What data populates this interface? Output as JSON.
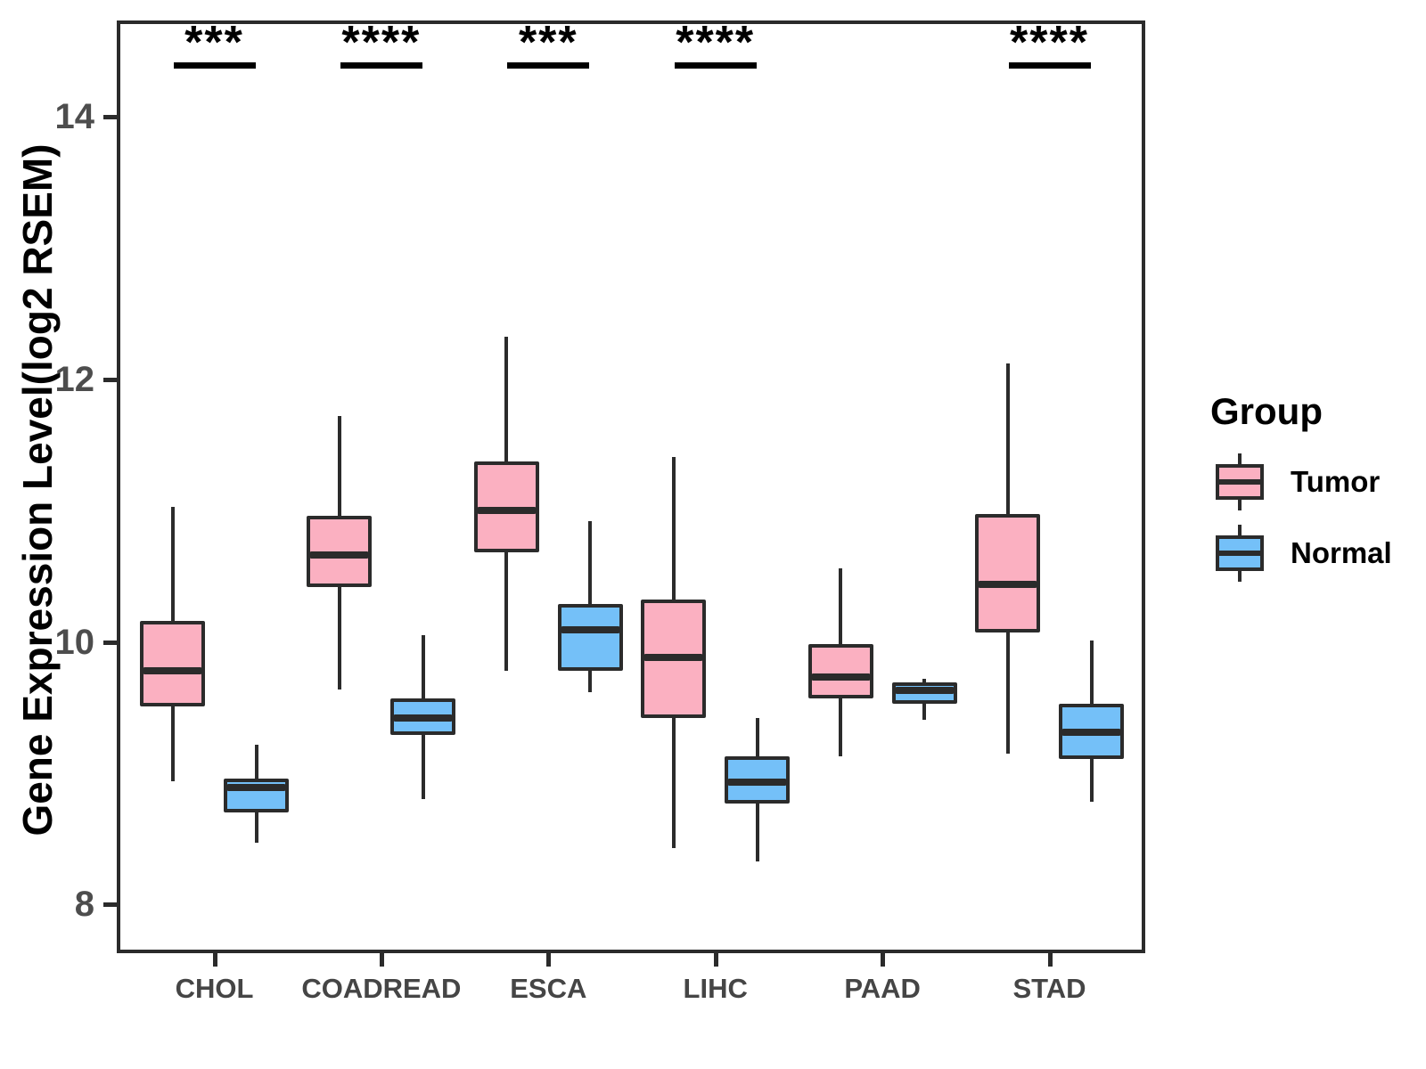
{
  "chart_data": {
    "type": "boxplot",
    "title": "",
    "xlabel": "",
    "ylabel": "Gene Expression Level(log2 RSEM)",
    "ylim": [
      7.63,
      14.73
    ],
    "y_ticks": [
      8,
      10,
      12,
      14
    ],
    "grid": "off",
    "categories": [
      "CHOL",
      "COADREAD",
      "ESCA",
      "LIHC",
      "PAAD",
      "STAD"
    ],
    "legend": {
      "title": "Group",
      "position": "right"
    },
    "groups": [
      {
        "name": "Tumor",
        "fill": "#FBB0C1"
      },
      {
        "name": "Normal",
        "fill": "#74C0F8"
      }
    ],
    "series": [
      {
        "name": "Tumor",
        "fill": "#FBB0C1",
        "boxes": [
          {
            "category": "CHOL",
            "min": 8.94,
            "q1": 9.51,
            "median": 9.78,
            "q3": 10.16,
            "max": 11.03
          },
          {
            "category": "COADREAD",
            "min": 9.64,
            "q1": 10.42,
            "median": 10.66,
            "q3": 10.96,
            "max": 11.72
          },
          {
            "category": "ESCA",
            "min": 9.78,
            "q1": 10.68,
            "median": 11.0,
            "q3": 11.37,
            "max": 12.32
          },
          {
            "category": "LIHC",
            "min": 8.43,
            "q1": 9.42,
            "median": 9.88,
            "q3": 10.32,
            "max": 11.41
          },
          {
            "category": "PAAD",
            "min": 9.13,
            "q1": 9.57,
            "median": 9.73,
            "q3": 9.98,
            "max": 10.56
          },
          {
            "category": "STAD",
            "min": 9.15,
            "q1": 10.07,
            "median": 10.44,
            "q3": 10.97,
            "max": 12.12
          }
        ]
      },
      {
        "name": "Normal",
        "fill": "#74C0F8",
        "boxes": [
          {
            "category": "CHOL",
            "min": 8.47,
            "q1": 8.7,
            "median": 8.89,
            "q3": 8.96,
            "max": 9.22
          },
          {
            "category": "COADREAD",
            "min": 8.8,
            "q1": 9.29,
            "median": 9.42,
            "q3": 9.57,
            "max": 10.05
          },
          {
            "category": "ESCA",
            "min": 9.62,
            "q1": 9.78,
            "median": 10.09,
            "q3": 10.29,
            "max": 10.92
          },
          {
            "category": "LIHC",
            "min": 8.33,
            "q1": 8.77,
            "median": 8.93,
            "q3": 9.13,
            "max": 9.42
          },
          {
            "category": "PAAD",
            "min": 9.41,
            "q1": 9.53,
            "median": 9.63,
            "q3": 9.69,
            "max": 9.72
          },
          {
            "category": "STAD",
            "min": 8.78,
            "q1": 9.11,
            "median": 9.31,
            "q3": 9.53,
            "max": 10.01
          }
        ]
      }
    ],
    "significance": [
      {
        "category": "CHOL",
        "label": "***"
      },
      {
        "category": "COADREAD",
        "label": "****"
      },
      {
        "category": "ESCA",
        "label": "***"
      },
      {
        "category": "LIHC",
        "label": "****"
      },
      {
        "category": "STAD",
        "label": "****"
      }
    ],
    "style": {
      "stroke": "#2B2B2B",
      "axis_text": "#4D4D4D",
      "background": "#FFFFFF"
    }
  }
}
